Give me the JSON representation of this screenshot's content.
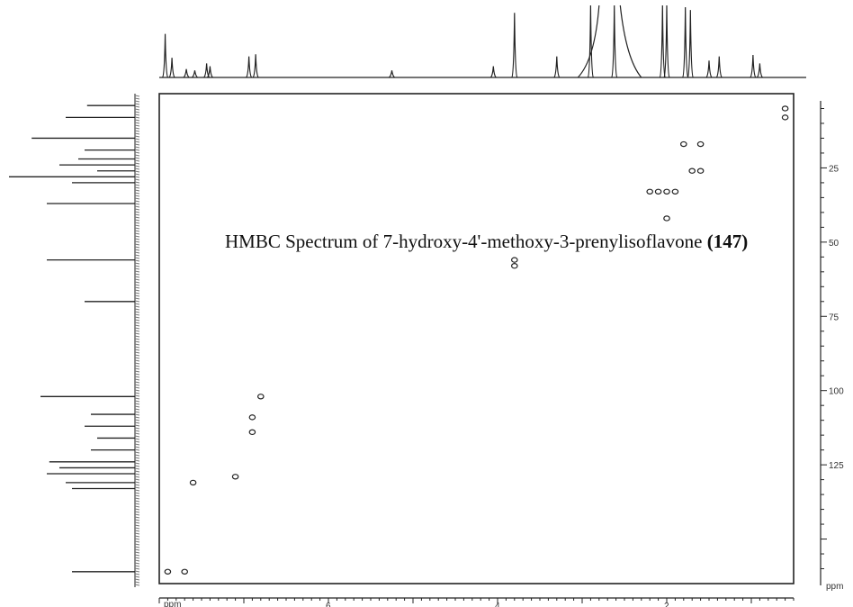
{
  "caption": {
    "text": "HMBC Spectrum of 7-hydroxy-4'-methoxy-3-prenylisoflavone",
    "compound_number": "147"
  },
  "chart_data": {
    "type": "scatter",
    "title": "HMBC Spectrum of 7-hydroxy-4'-methoxy-3-prenylisoflavone (147)",
    "xlabel": "ppm",
    "ylabel": "ppm",
    "x_unit_label": "ppm",
    "y_unit_label": "ppm",
    "xlim": [
      8.0,
      0.5
    ],
    "ylim": [
      0,
      165
    ],
    "x_reversed": true,
    "x_ticks": [
      {
        "value": 6,
        "label": "6"
      },
      {
        "value": 4,
        "label": "4"
      },
      {
        "value": 2,
        "label": "2"
      }
    ],
    "y_ticks": [
      {
        "value": 25,
        "label": "25"
      },
      {
        "value": 50,
        "label": "50"
      },
      {
        "value": 75,
        "label": "75"
      },
      {
        "value": 100,
        "label": "100"
      },
      {
        "value": 125,
        "label": "125"
      }
    ],
    "correlations": [
      {
        "x": 0.6,
        "y": 5
      },
      {
        "x": 0.6,
        "y": 8
      },
      {
        "x": 1.8,
        "y": 17
      },
      {
        "x": 1.6,
        "y": 17
      },
      {
        "x": 1.7,
        "y": 26
      },
      {
        "x": 1.6,
        "y": 26
      },
      {
        "x": 2.2,
        "y": 33
      },
      {
        "x": 2.1,
        "y": 33
      },
      {
        "x": 2.0,
        "y": 33
      },
      {
        "x": 1.9,
        "y": 33
      },
      {
        "x": 2.0,
        "y": 42
      },
      {
        "x": 3.8,
        "y": 56
      },
      {
        "x": 3.8,
        "y": 58
      },
      {
        "x": 6.8,
        "y": 102
      },
      {
        "x": 6.9,
        "y": 109
      },
      {
        "x": 6.9,
        "y": 114
      },
      {
        "x": 7.1,
        "y": 129
      },
      {
        "x": 7.6,
        "y": 131
      },
      {
        "x": 7.9,
        "y": 161
      },
      {
        "x": 7.7,
        "y": 161
      }
    ],
    "f2_projection": [
      {
        "x": 7.93,
        "h": 0.62
      },
      {
        "x": 7.85,
        "h": 0.28
      },
      {
        "x": 7.68,
        "h": 0.12
      },
      {
        "x": 7.58,
        "h": 0.1
      },
      {
        "x": 7.44,
        "h": 0.2
      },
      {
        "x": 7.4,
        "h": 0.16
      },
      {
        "x": 6.94,
        "h": 0.3
      },
      {
        "x": 6.86,
        "h": 0.33
      },
      {
        "x": 5.25,
        "h": 0.1
      },
      {
        "x": 4.05,
        "h": 0.16
      },
      {
        "x": 3.8,
        "h": 0.92
      },
      {
        "x": 3.3,
        "h": 0.3
      },
      {
        "x": 2.9,
        "h": 1.1
      },
      {
        "x": 2.62,
        "h": 1.1
      },
      {
        "x": 2.05,
        "h": 1.1
      },
      {
        "x": 2.0,
        "h": 1.1
      },
      {
        "x": 1.78,
        "h": 1.0
      },
      {
        "x": 1.72,
        "h": 0.96
      },
      {
        "x": 1.5,
        "h": 0.24
      },
      {
        "x": 1.38,
        "h": 0.3
      },
      {
        "x": 0.98,
        "h": 0.32
      },
      {
        "x": 0.9,
        "h": 0.2
      }
    ],
    "f1_projection": [
      {
        "y": 4,
        "w": 0.38
      },
      {
        "y": 8,
        "w": 0.55
      },
      {
        "y": 15,
        "w": 0.82
      },
      {
        "y": 19,
        "w": 0.4
      },
      {
        "y": 22,
        "w": 0.45
      },
      {
        "y": 24,
        "w": 0.6
      },
      {
        "y": 26,
        "w": 0.3
      },
      {
        "y": 28,
        "w": 1.0
      },
      {
        "y": 30,
        "w": 0.5
      },
      {
        "y": 37,
        "w": 0.7
      },
      {
        "y": 56,
        "w": 0.7
      },
      {
        "y": 70,
        "w": 0.4
      },
      {
        "y": 102,
        "w": 0.75
      },
      {
        "y": 108,
        "w": 0.35
      },
      {
        "y": 112,
        "w": 0.4
      },
      {
        "y": 116,
        "w": 0.3
      },
      {
        "y": 120,
        "w": 0.35
      },
      {
        "y": 124,
        "w": 0.68
      },
      {
        "y": 126,
        "w": 0.6
      },
      {
        "y": 128,
        "w": 0.7
      },
      {
        "y": 131,
        "w": 0.55
      },
      {
        "y": 133,
        "w": 0.5
      },
      {
        "y": 161,
        "w": 0.5
      }
    ]
  }
}
